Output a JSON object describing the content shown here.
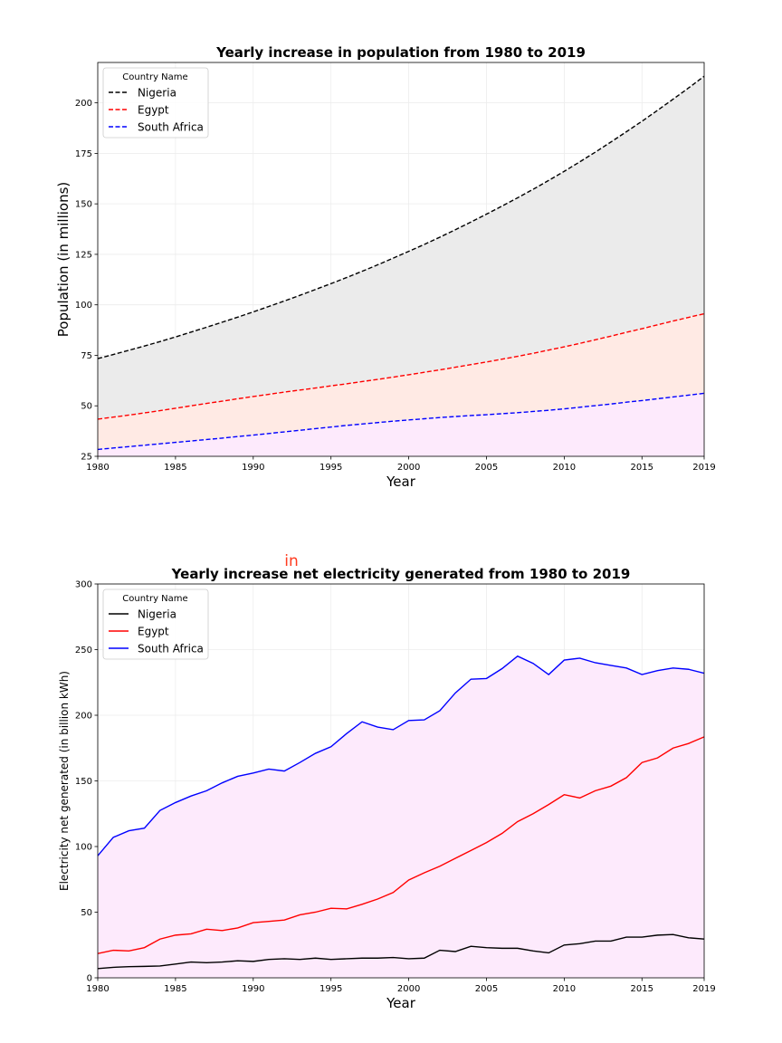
{
  "chart_data": [
    {
      "type": "area",
      "title": "Yearly increase in population from 1980 to 2019",
      "xlabel": "Year",
      "ylabel": "Population (in millions)",
      "xlim": [
        1980,
        2019
      ],
      "ylim": [
        25,
        220
      ],
      "xticks": [
        "1980",
        "1985",
        "1990",
        "1995",
        "2000",
        "2005",
        "2010",
        "2015",
        "2019"
      ],
      "yticks": [
        "25",
        "50",
        "75",
        "100",
        "125",
        "150",
        "175",
        "200"
      ],
      "grid": true,
      "line_style": "dashed",
      "legend": {
        "title": "Country Name",
        "placement": "top-left"
      },
      "x": [
        1980,
        1981,
        1982,
        1983,
        1984,
        1985,
        1986,
        1987,
        1988,
        1989,
        1990,
        1991,
        1992,
        1993,
        1994,
        1995,
        1996,
        1997,
        1998,
        1999,
        2000,
        2001,
        2002,
        2003,
        2004,
        2005,
        2006,
        2007,
        2008,
        2009,
        2010,
        2011,
        2012,
        2013,
        2014,
        2015,
        2016,
        2017,
        2018,
        2019
      ],
      "series": [
        {
          "name": "Nigeria",
          "color": "#000000",
          "fill": "#ebebeb",
          "values": [
            73.4,
            75.4,
            77.5,
            79.6,
            81.8,
            84.1,
            86.5,
            88.9,
            91.4,
            93.9,
            96.5,
            99.2,
            101.9,
            104.7,
            107.6,
            110.5,
            113.5,
            116.6,
            119.8,
            123.1,
            126.5,
            129.9,
            133.5,
            137.2,
            141.0,
            144.9,
            148.9,
            153.0,
            157.2,
            161.6,
            166.1,
            170.8,
            175.6,
            180.6,
            185.7,
            190.9,
            196.3,
            201.8,
            207.4,
            213.2
          ]
        },
        {
          "name": "Egypt",
          "color": "#ff0000",
          "fill": "#ffeae4",
          "values": [
            43.4,
            44.4,
            45.4,
            46.5,
            47.6,
            48.8,
            50.0,
            51.2,
            52.3,
            53.5,
            54.6,
            55.7,
            56.8,
            57.8,
            58.8,
            59.9,
            60.9,
            62.0,
            63.1,
            64.2,
            65.4,
            66.6,
            67.8,
            69.1,
            70.4,
            71.7,
            73.1,
            74.5,
            76.0,
            77.6,
            79.2,
            80.9,
            82.7,
            84.5,
            86.4,
            88.2,
            90.1,
            92.0,
            93.8,
            95.6
          ]
        },
        {
          "name": "South Africa",
          "color": "#0000ff",
          "fill": "#fdeafc",
          "values": [
            28.4,
            29.1,
            29.8,
            30.5,
            31.2,
            31.9,
            32.6,
            33.3,
            34.0,
            34.8,
            35.5,
            36.3,
            37.1,
            37.9,
            38.7,
            39.5,
            40.3,
            41.0,
            41.7,
            42.4,
            43.0,
            43.6,
            44.2,
            44.7,
            45.2,
            45.6,
            46.1,
            46.6,
            47.2,
            47.8,
            48.5,
            49.3,
            50.1,
            50.9,
            51.8,
            52.6,
            53.5,
            54.4,
            55.3,
            56.2
          ]
        }
      ]
    },
    {
      "type": "area",
      "title": "Yearly increase net electricity generated from 1980 to 2019",
      "annotation": "in",
      "xlabel": "Year",
      "ylabel": "Electricity net generated (in billion kWh)",
      "xlim": [
        1980,
        2019
      ],
      "ylim": [
        0,
        300
      ],
      "xticks": [
        "1980",
        "1985",
        "1990",
        "1995",
        "2000",
        "2005",
        "2010",
        "2015",
        "2019"
      ],
      "yticks": [
        "0",
        "50",
        "100",
        "150",
        "200",
        "250",
        "300"
      ],
      "grid": true,
      "line_style": "solid",
      "legend": {
        "title": "Country Name",
        "placement": "top-left"
      },
      "x": [
        1980,
        1981,
        1982,
        1983,
        1984,
        1985,
        1986,
        1987,
        1988,
        1989,
        1990,
        1991,
        1992,
        1993,
        1994,
        1995,
        1996,
        1997,
        1998,
        1999,
        2000,
        2001,
        2002,
        2003,
        2004,
        2005,
        2006,
        2007,
        2008,
        2009,
        2010,
        2011,
        2012,
        2013,
        2014,
        2015,
        2016,
        2017,
        2018,
        2019
      ],
      "series": [
        {
          "name": "Nigeria",
          "color": "#000000",
          "fill": "#ebebeb",
          "values": [
            7,
            8,
            8.5,
            8.7,
            9,
            10.5,
            12,
            11.5,
            12,
            13,
            12.5,
            14,
            14.5,
            14,
            15,
            14,
            14.5,
            15,
            15,
            15.5,
            14.5,
            15,
            21,
            20,
            24,
            23,
            22.5,
            22.5,
            20.5,
            19,
            25,
            26,
            28,
            28,
            31,
            31,
            32.5,
            33,
            30.5,
            29.5
          ]
        },
        {
          "name": "Egypt",
          "color": "#ff0000",
          "fill": "#ffeae4",
          "values": [
            18.5,
            21,
            20.5,
            23,
            29.5,
            32.5,
            33.5,
            37,
            36,
            38,
            42,
            43,
            44,
            48,
            50,
            53,
            52.5,
            56,
            60,
            65,
            74.5,
            80,
            85,
            91,
            97,
            103,
            110,
            119,
            125,
            132,
            139.5,
            137,
            142.5,
            146,
            152.5,
            164,
            167.5,
            175,
            178.5,
            183.5
          ]
        },
        {
          "name": "South Africa",
          "color": "#0000ff",
          "fill": "#fdeafc",
          "values": [
            93,
            107,
            112,
            114,
            127.5,
            133.5,
            138.5,
            142.5,
            148.5,
            153.5,
            156,
            159,
            157.5,
            164,
            171,
            176,
            186,
            195,
            191,
            189,
            196,
            196.5,
            203.5,
            217,
            227.5,
            228,
            235.5,
            245,
            239.5,
            231,
            242,
            243.5,
            240,
            238,
            236,
            231,
            234,
            236,
            235,
            232
          ]
        }
      ]
    }
  ]
}
